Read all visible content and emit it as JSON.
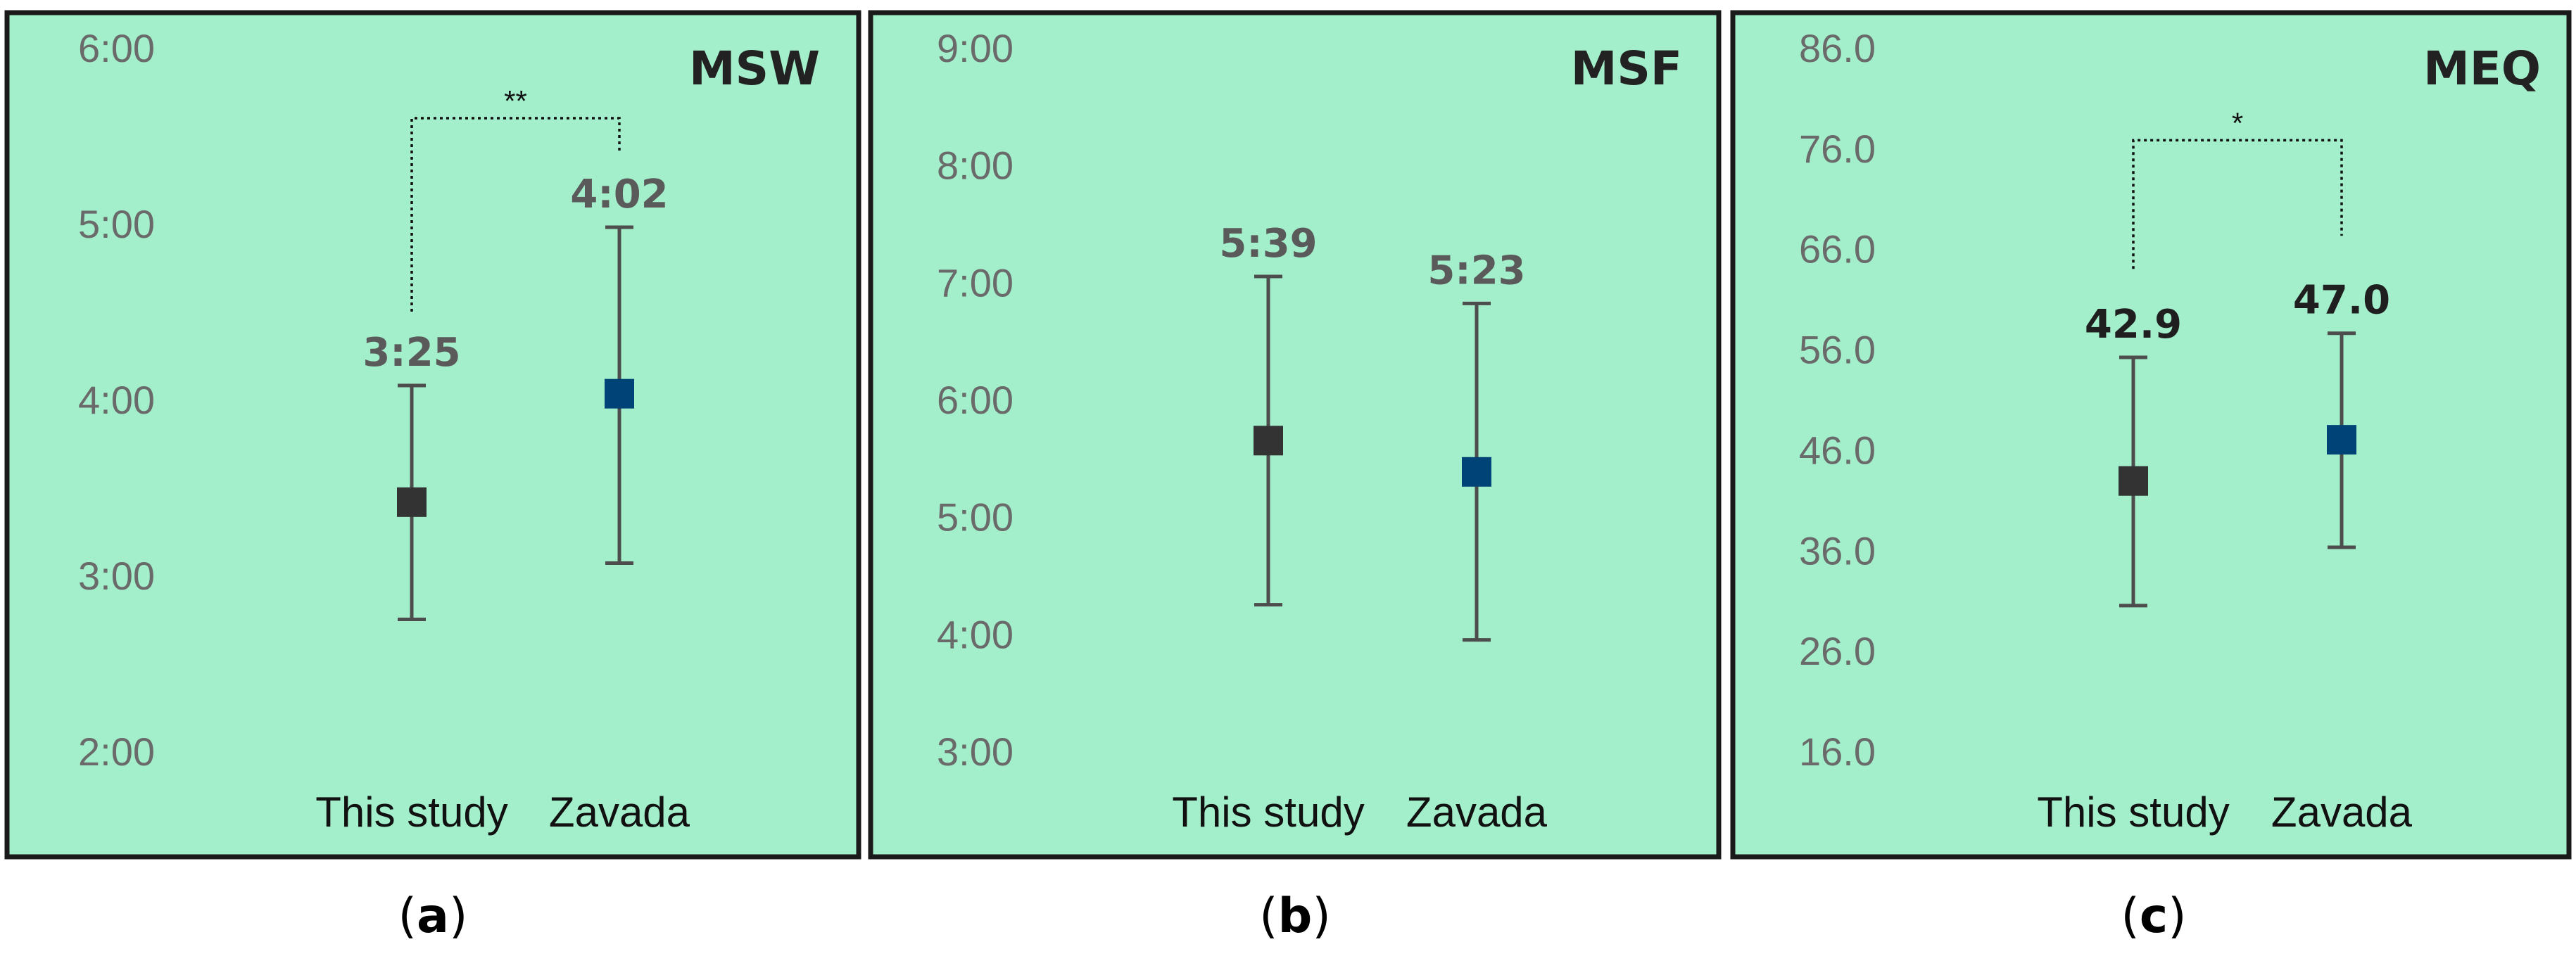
{
  "colors": {
    "panel_background": "#a3eecb",
    "panel_border": "#1a1a1a",
    "this_study_marker": "#333333",
    "zavada_marker": "#004477",
    "tick_text": "#6a6a6a",
    "data_label_dark": "#5a5a5a",
    "data_label_meq": "#1f1f1f"
  },
  "chart_data": [
    {
      "type": "scatter",
      "title": "MSW",
      "caption": "(a)",
      "categories": [
        "This study",
        "Zavada"
      ],
      "y_unit": "hours",
      "ylim": [
        2.0,
        6.0
      ],
      "y_ticks": [
        2,
        3,
        4,
        5,
        6
      ],
      "y_tick_labels": [
        "2:00",
        "3:00",
        "4:00",
        "5:00",
        "6:00"
      ],
      "values": [
        3.4167,
        4.0333
      ],
      "error_low": [
        2.75,
        3.07
      ],
      "error_high": [
        4.08,
        4.98
      ],
      "data_labels": [
        "3:25",
        "4:02"
      ],
      "significance": {
        "label": "**",
        "between": [
          0,
          1
        ],
        "bracket_y": 5.6,
        "left_end_y": 4.5,
        "right_end_y": 5.4
      },
      "grid": false,
      "legend": "none"
    },
    {
      "type": "scatter",
      "title": "MSF",
      "caption": "(b)",
      "categories": [
        "This study",
        "Zavada"
      ],
      "y_unit": "hours",
      "ylim": [
        3.0,
        9.0
      ],
      "y_ticks": [
        3,
        4,
        5,
        6,
        7,
        8,
        9
      ],
      "y_tick_labels": [
        "3:00",
        "4:00",
        "5:00",
        "6:00",
        "7:00",
        "8:00",
        "9:00"
      ],
      "values": [
        5.65,
        5.3833
      ],
      "error_low": [
        4.25,
        3.95
      ],
      "error_high": [
        7.05,
        6.82
      ],
      "data_labels": [
        "5:39",
        "5:23"
      ],
      "grid": false,
      "legend": "none"
    },
    {
      "type": "scatter",
      "title": "MEQ",
      "caption": "(c)",
      "categories": [
        "This study",
        "Zavada"
      ],
      "ylim": [
        16.0,
        86.0
      ],
      "y_ticks": [
        16,
        26,
        36,
        46,
        56,
        66,
        76,
        86
      ],
      "y_tick_labels": [
        "16.0",
        "26.0",
        "36.0",
        "46.0",
        "56.0",
        "66.0",
        "76.0",
        "86.0"
      ],
      "values": [
        42.9,
        47.0
      ],
      "error_low": [
        30.5,
        36.3
      ],
      "error_high": [
        55.2,
        57.6
      ],
      "data_labels": [
        "42.9",
        "47.0"
      ],
      "significance": {
        "label": "*",
        "between": [
          0,
          1
        ],
        "bracket_y": 76.8,
        "left_end_y": 64.0,
        "right_end_y": 67.3
      },
      "grid": false,
      "legend": "none"
    }
  ]
}
